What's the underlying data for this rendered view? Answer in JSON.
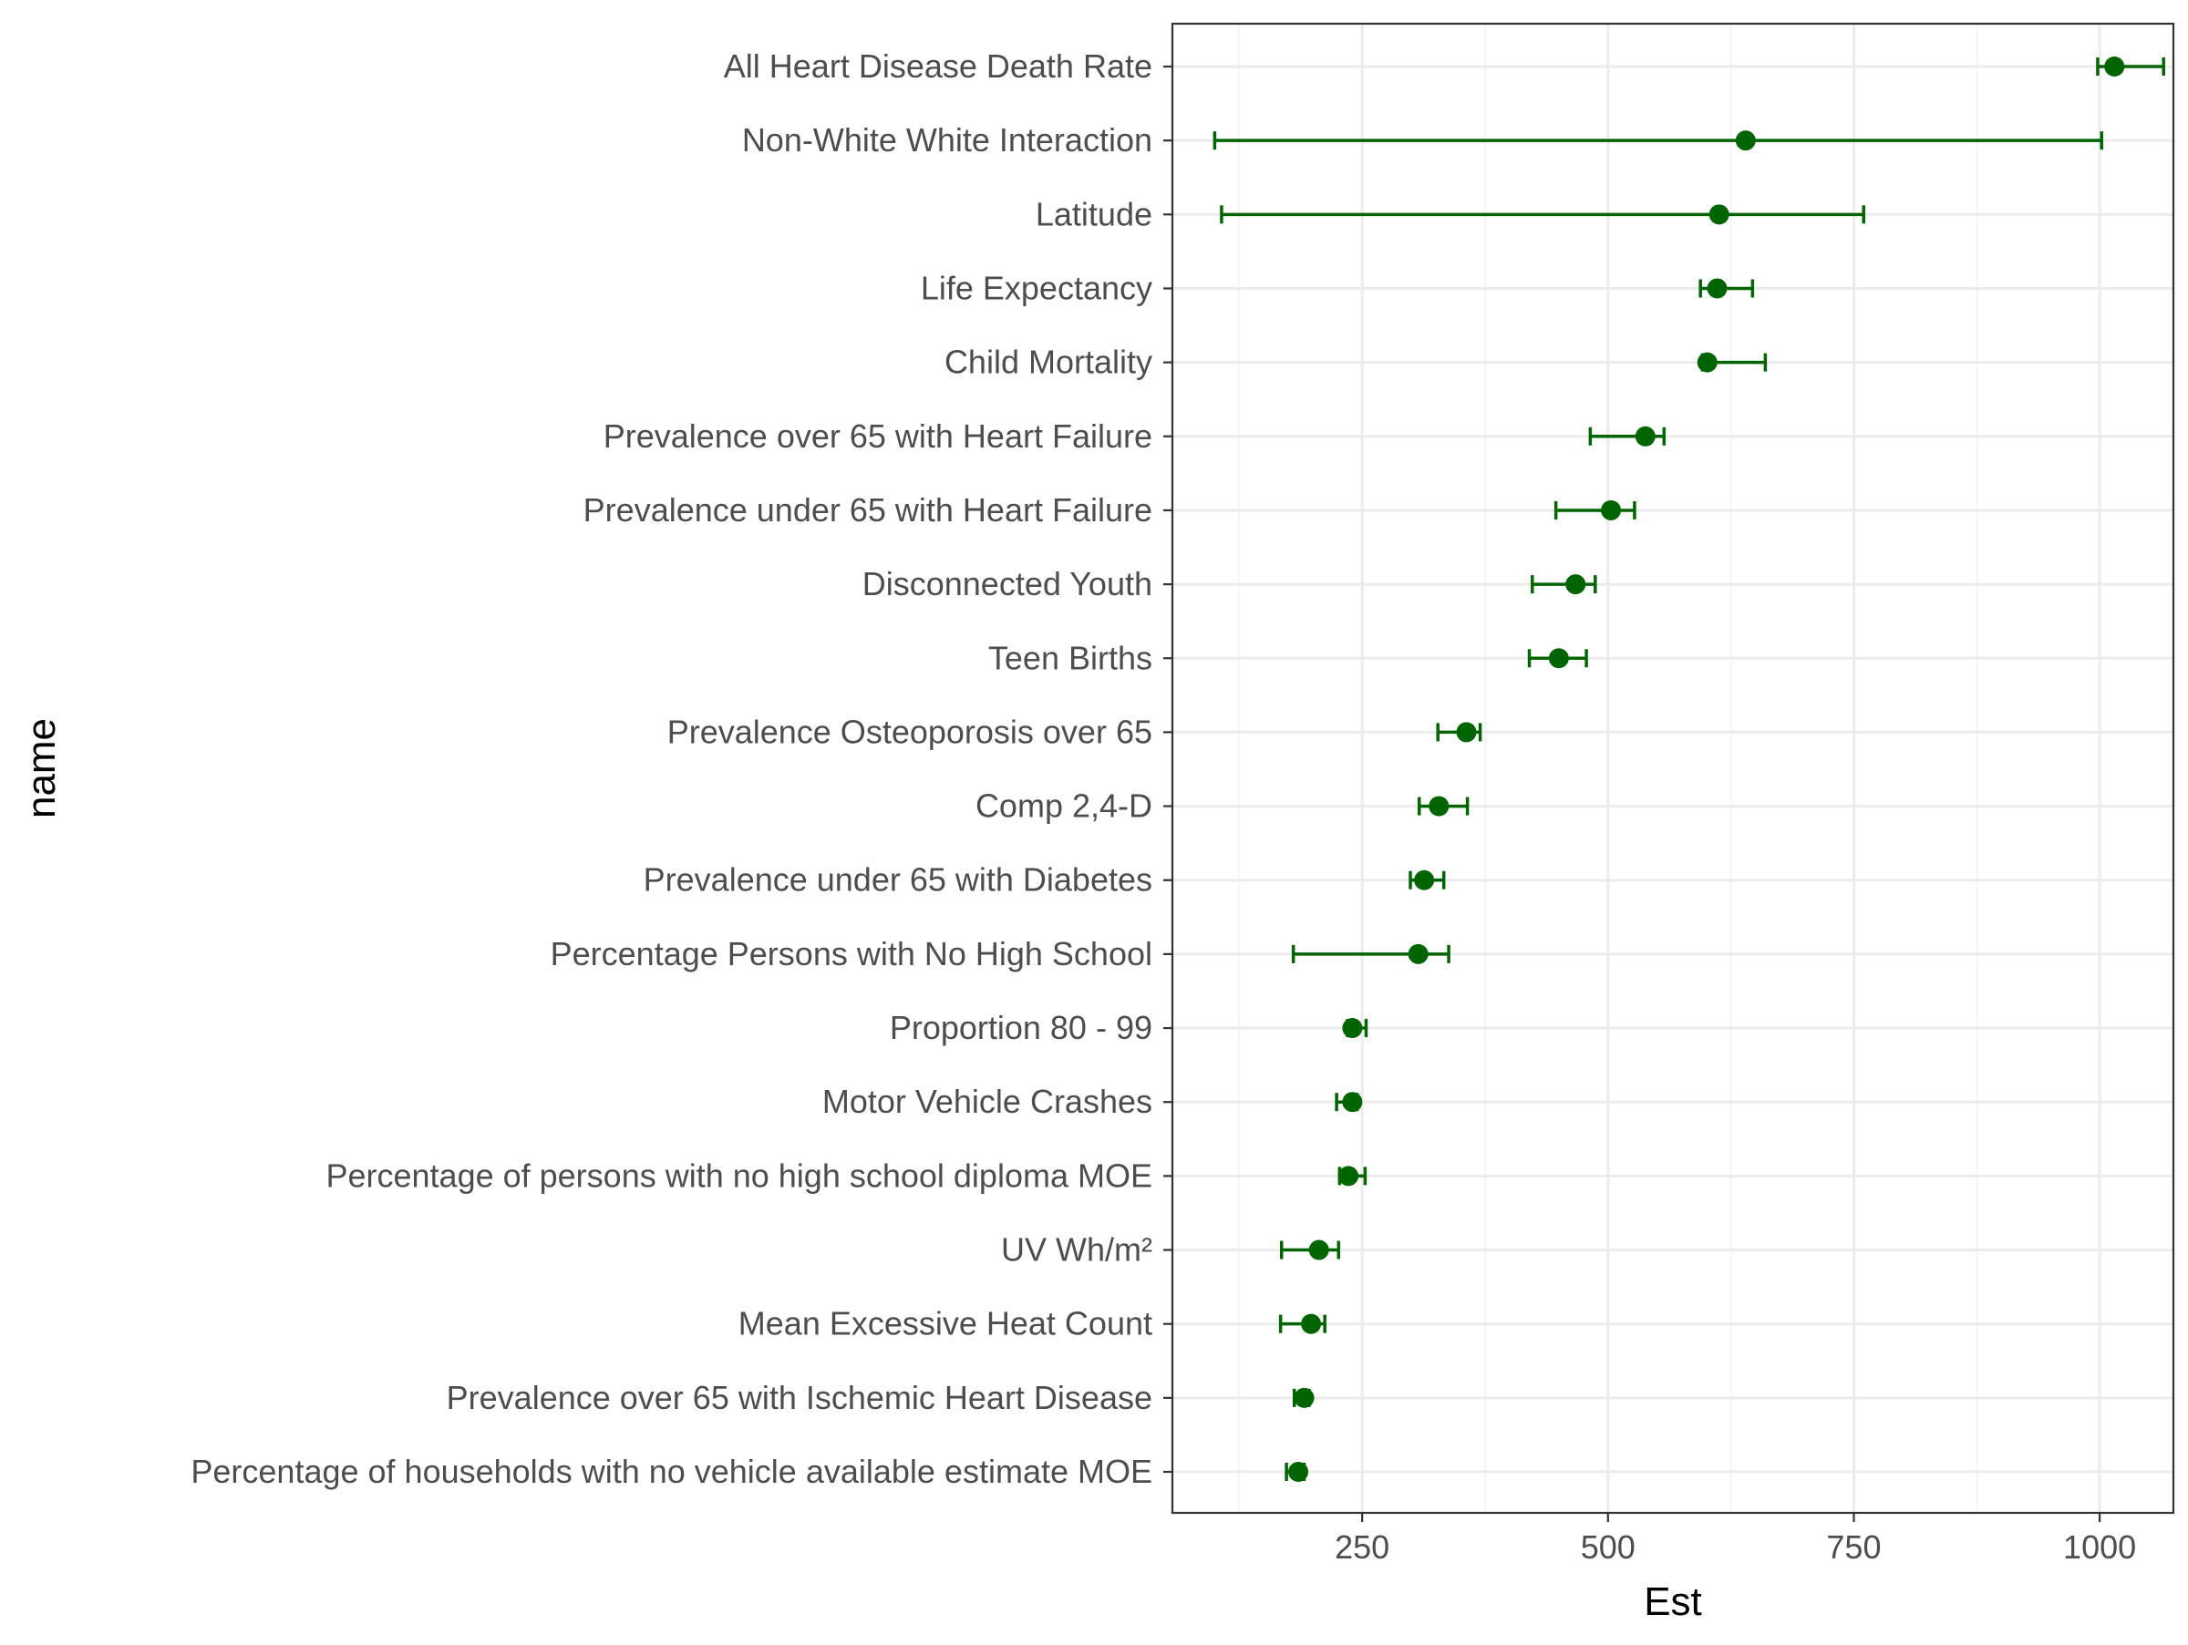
{
  "chart_data": {
    "type": "scatter",
    "subtype": "point-range (estimate with error bars)",
    "xlabel": "Est",
    "ylabel": "name",
    "xlim": [
      57,
      1075
    ],
    "x_ticks": [
      250,
      500,
      750,
      1000
    ],
    "x_tick_labels": [
      "250",
      "500",
      "750",
      "1000"
    ],
    "grid": true,
    "legend": "none",
    "point_color": "#006400",
    "series": [
      {
        "points": [
          {
            "name": "All Heart Disease Death Rate",
            "est": 1015,
            "lower": 998,
            "upper": 1065
          },
          {
            "name": "Non-White White Interaction",
            "est": 640,
            "lower": 100,
            "upper": 1002
          },
          {
            "name": "Latitude",
            "est": 613,
            "lower": 107,
            "upper": 760
          },
          {
            "name": "Life Expectancy",
            "est": 611,
            "lower": 594,
            "upper": 647
          },
          {
            "name": "Child Mortality",
            "est": 601,
            "lower": 596,
            "upper": 660
          },
          {
            "name": "Prevalence over 65 with Heart Failure",
            "est": 538,
            "lower": 482,
            "upper": 557
          },
          {
            "name": "Prevalence under 65 with Heart Failure",
            "est": 503,
            "lower": 447,
            "upper": 527
          },
          {
            "name": "Disconnected Youth",
            "est": 467,
            "lower": 423,
            "upper": 487
          },
          {
            "name": "Teen Births",
            "est": 450,
            "lower": 420,
            "upper": 478
          },
          {
            "name": "Prevalence Osteoporosis over 65",
            "est": 356,
            "lower": 327,
            "upper": 370
          },
          {
            "name": "Comp 2,4-D",
            "est": 328,
            "lower": 308,
            "upper": 357
          },
          {
            "name": "Prevalence under 65 with Diabetes",
            "est": 313,
            "lower": 299,
            "upper": 333
          },
          {
            "name": "Percentage Persons with No High School",
            "est": 307,
            "lower": 180,
            "upper": 338
          },
          {
            "name": "Proportion 80 - 99",
            "est": 240,
            "lower": 235,
            "upper": 254
          },
          {
            "name": "Motor Vehicle Crashes",
            "est": 240,
            "lower": 224,
            "upper": 245
          },
          {
            "name": "Percentage of persons with no high school diploma MOE",
            "est": 236,
            "lower": 227,
            "upper": 253
          },
          {
            "name": "UV Wh/m²",
            "est": 206,
            "lower": 168,
            "upper": 226
          },
          {
            "name": "Mean Excessive Heat Count",
            "est": 198,
            "lower": 167,
            "upper": 212
          },
          {
            "name": "Prevalence over 65 with Ischemic Heart Disease",
            "est": 191,
            "lower": 181,
            "upper": 196
          },
          {
            "name": "Percentage of households with no vehicle available estimate MOE",
            "est": 185,
            "lower": 173,
            "upper": 191
          }
        ]
      }
    ]
  }
}
